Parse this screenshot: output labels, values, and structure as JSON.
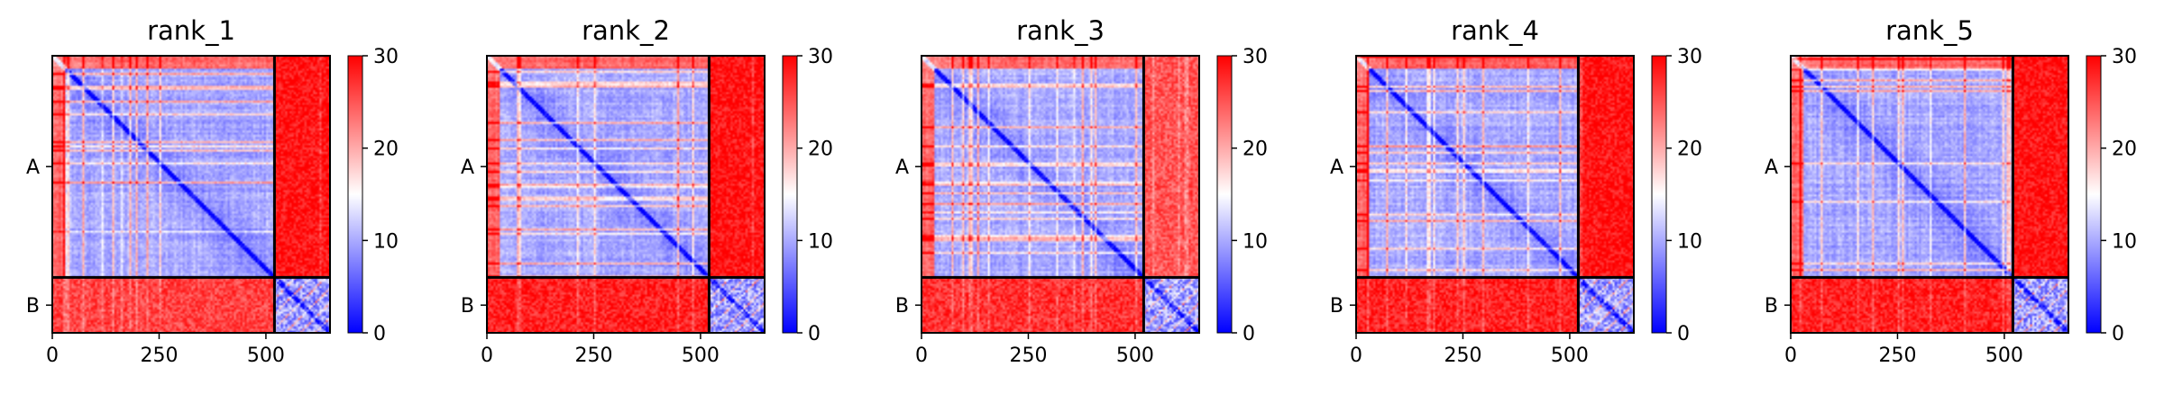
{
  "chart_data": {
    "type": "heatmap",
    "colormap": {
      "name": "bwr",
      "low": "#0000ff",
      "mid": "#ffffff",
      "high": "#ff0000"
    },
    "colorbar": {
      "vmin": 0,
      "vmax": 30,
      "ticks": [
        "0",
        "10",
        "20",
        "30"
      ]
    },
    "x_ticks": [
      "0",
      "250",
      "500"
    ],
    "chain_labels": [
      "A",
      "B"
    ],
    "chain_boundary": 520,
    "total_length": 650,
    "grid": false,
    "panels": [
      {
        "title": "rank_1",
        "mean_intra_A": 8,
        "mean_intra_B": 9,
        "mean_inter_AB": 29,
        "mean_inter_BA": 26
      },
      {
        "title": "rank_2",
        "mean_intra_A": 8,
        "mean_intra_B": 9,
        "mean_inter_AB": 29,
        "mean_inter_BA": 28
      },
      {
        "title": "rank_3",
        "mean_intra_A": 8,
        "mean_intra_B": 9,
        "mean_inter_AB": 25,
        "mean_inter_BA": 27
      },
      {
        "title": "rank_4",
        "mean_intra_A": 8,
        "mean_intra_B": 9,
        "mean_inter_AB": 29,
        "mean_inter_BA": 28
      },
      {
        "title": "rank_5",
        "mean_intra_A": 8,
        "mean_intra_B": 9,
        "mean_inter_AB": 29,
        "mean_inter_BA": 28
      }
    ]
  }
}
